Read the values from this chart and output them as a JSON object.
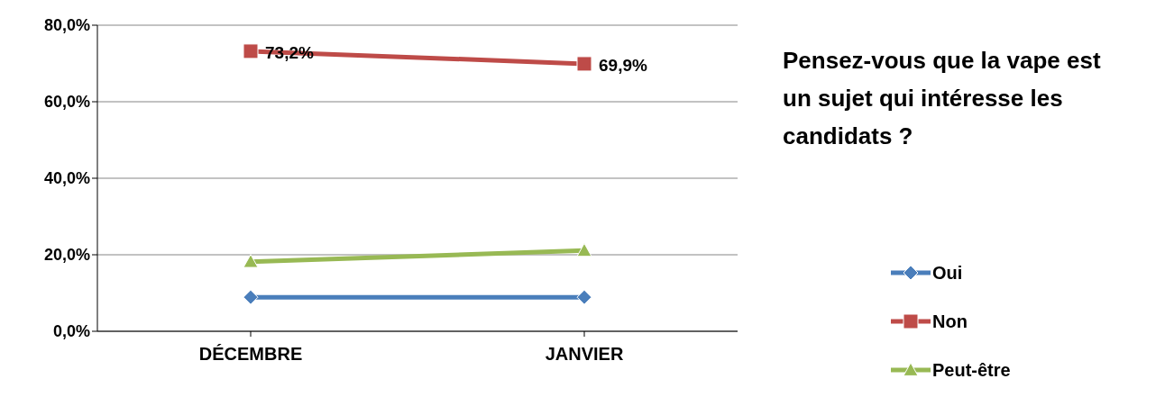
{
  "chart_data": {
    "type": "line",
    "title": "Pensez-vous que la vape est un sujet qui intéresse les candidats ?",
    "categories": [
      "DÉCEMBRE",
      "JANVIER"
    ],
    "series": [
      {
        "name": "Oui",
        "color": "#4a7ebb",
        "values": [
          8.9,
          8.9
        ],
        "marker": "diamond"
      },
      {
        "name": "Non",
        "color": "#be4b48",
        "values": [
          73.2,
          69.9
        ],
        "marker": "square",
        "value_labels": [
          "73,2%",
          "69,9%"
        ]
      },
      {
        "name": "Peut-être",
        "color": "#98b954",
        "values": [
          18.2,
          21.1
        ],
        "marker": "triangle"
      }
    ],
    "ylim": [
      0,
      80
    ],
    "yticks": [
      {
        "value": 0,
        "label": "0,0%"
      },
      {
        "value": 20,
        "label": "20,0%"
      },
      {
        "value": 40,
        "label": "40,0%"
      },
      {
        "value": 60,
        "label": "60,0%"
      },
      {
        "value": 80,
        "label": "80,0%"
      }
    ],
    "grid": "y",
    "legend": "right"
  }
}
